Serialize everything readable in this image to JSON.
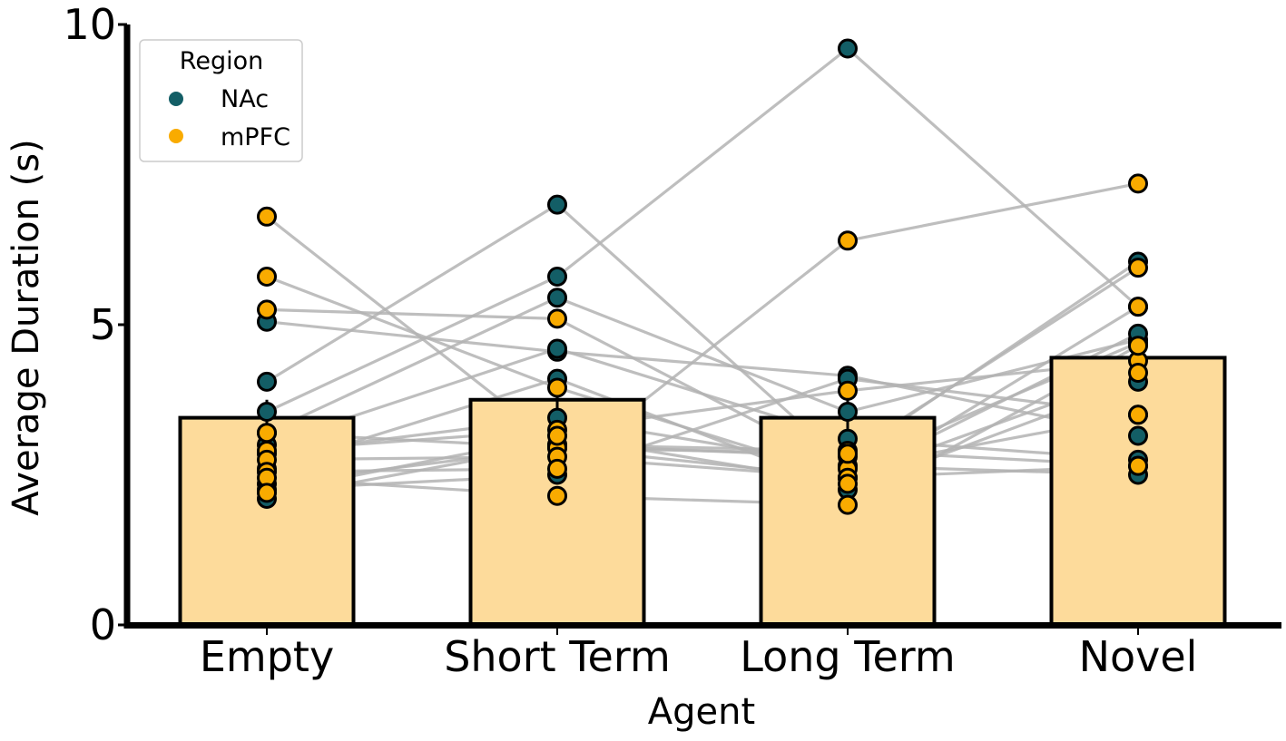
{
  "chart_data": {
    "type": "bar",
    "xlabel": "Agent",
    "ylabel": "Average Duration (s)",
    "ylim": [
      0,
      10
    ],
    "yticks": [
      "0",
      "5",
      "10"
    ],
    "categories": [
      "Empty",
      "Short Term",
      "Long Term",
      "Novel"
    ],
    "category_colors": [
      "#000000",
      "#0047a6",
      "#a13fa8",
      "#e0672a"
    ],
    "bar_values": [
      3.45,
      3.75,
      3.45,
      4.45
    ],
    "bar_color": "#fddb9b",
    "bar_edge_color": "#000000",
    "error_bars": [
      0.3,
      0.3,
      0.45,
      0.3
    ],
    "grid": false,
    "legend": {
      "title": "Region",
      "placement": "top-left",
      "entries": [
        {
          "label": "NAc",
          "color": "#135e66"
        },
        {
          "label": "mPFC",
          "color": "#f9ab00"
        }
      ]
    },
    "connector_color": "#b3b3b3",
    "subjects": [
      {
        "region": "NAc",
        "values": [
          5.05,
          4.55,
          4.15,
          3.15
        ]
      },
      {
        "region": "NAc",
        "values": [
          4.05,
          7.0,
          2.65,
          4.7
        ]
      },
      {
        "region": "NAc",
        "values": [
          3.55,
          5.8,
          9.6,
          5.3
        ]
      },
      {
        "region": "NAc",
        "values": [
          3.2,
          5.45,
          3.55,
          4.75
        ]
      },
      {
        "region": "NAc",
        "values": [
          3.0,
          4.6,
          3.1,
          2.75
        ]
      },
      {
        "region": "NAc",
        "values": [
          2.85,
          3.45,
          2.65,
          2.5
        ]
      },
      {
        "region": "NAc",
        "values": [
          2.6,
          4.1,
          2.25,
          4.05
        ]
      },
      {
        "region": "NAc",
        "values": [
          2.35,
          2.95,
          2.45,
          4.85
        ]
      },
      {
        "region": "NAc",
        "values": [
          2.1,
          3.0,
          2.8,
          6.05
        ]
      },
      {
        "region": "NAc",
        "values": [
          2.25,
          2.5,
          4.1,
          3.5
        ]
      },
      {
        "region": "mPFC",
        "values": [
          6.8,
          3.0,
          2.9,
          2.65
        ]
      },
      {
        "region": "mPFC",
        "values": [
          5.8,
          3.95,
          2.45,
          2.65
        ]
      },
      {
        "region": "mPFC",
        "values": [
          5.25,
          5.1,
          2.6,
          3.5
        ]
      },
      {
        "region": "mPFC",
        "values": [
          3.2,
          2.95,
          2.85,
          5.95
        ]
      },
      {
        "region": "mPFC",
        "values": [
          2.9,
          3.25,
          3.9,
          4.4
        ]
      },
      {
        "region": "mPFC",
        "values": [
          2.75,
          2.8,
          2.45,
          4.2
        ]
      },
      {
        "region": "mPFC",
        "values": [
          2.55,
          2.6,
          6.4,
          7.35
        ]
      },
      {
        "region": "mPFC",
        "values": [
          2.45,
          2.15,
          2.0,
          4.65
        ]
      },
      {
        "region": "mPFC",
        "values": [
          2.2,
          3.15,
          2.35,
          5.3
        ]
      }
    ]
  }
}
